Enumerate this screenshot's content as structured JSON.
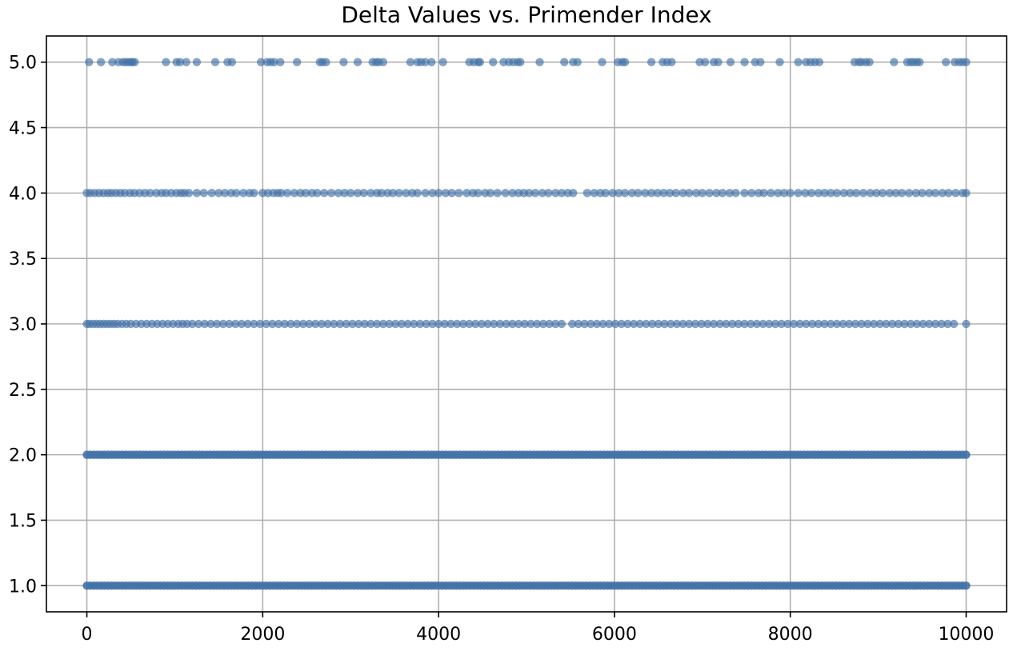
{
  "chart_data": {
    "type": "scatter",
    "title": "Delta Values vs. Primender Index",
    "xlabel": "",
    "ylabel": "",
    "xlim": [
      -460,
      10460
    ],
    "ylim": [
      0.8,
      5.2
    ],
    "x_ticks": [
      0,
      2000,
      4000,
      6000,
      8000,
      10000
    ],
    "x_tick_labels": [
      "0",
      "2000",
      "4000",
      "6000",
      "8000",
      "10000"
    ],
    "y_ticks": [
      1.0,
      1.5,
      2.0,
      2.5,
      3.0,
      3.5,
      4.0,
      4.5,
      5.0
    ],
    "y_tick_labels": [
      "1.0",
      "1.5",
      "2.0",
      "2.5",
      "3.0",
      "3.5",
      "4.0",
      "4.5",
      "5.0"
    ],
    "grid": true,
    "marker_color": "#4472a8",
    "marker_alpha": 0.65,
    "series": [
      {
        "delta": 5.0,
        "x": [
          25,
          160,
          290,
          360,
          410,
          440,
          470,
          500,
          520,
          545,
          900,
          1020,
          1060,
          1130,
          1250,
          1460,
          1600,
          1650,
          1980,
          2050,
          2090,
          2130,
          2200,
          2390,
          2650,
          2680,
          2720,
          2920,
          3080,
          3250,
          3290,
          3320,
          3370,
          3680,
          3760,
          3800,
          3850,
          3920,
          4050,
          4350,
          4400,
          4450,
          4470,
          4620,
          4740,
          4800,
          4850,
          4900,
          4930,
          5150,
          5430,
          5530,
          5580,
          5860,
          6040,
          6090,
          6120,
          6420,
          6550,
          6600,
          6650,
          6970,
          7030,
          7130,
          7180,
          7320,
          7480,
          7600,
          7660,
          7880,
          8090,
          8180,
          8230,
          8280,
          8330,
          8730,
          8780,
          8810,
          8860,
          8900,
          9180,
          9330,
          9370,
          9400,
          9440,
          9470,
          9770,
          9870,
          9920,
          9960,
          10000
        ]
      },
      {
        "delta": 4.0,
        "x": [
          0,
          40,
          90,
          140,
          190,
          240,
          280,
          330,
          380,
          430,
          490,
          540,
          600,
          660,
          720,
          790,
          850,
          900,
          960,
          1020,
          1070,
          1110,
          1160,
          1250,
          1330,
          1420,
          1500,
          1570,
          1640,
          1700,
          1780,
          1850,
          1900,
          2000,
          2060,
          2120,
          2170,
          2210,
          2280,
          2360,
          2430,
          2490,
          2560,
          2620,
          2700,
          2780,
          2860,
          2930,
          3000,
          3080,
          3150,
          3230,
          3300,
          3350,
          3420,
          3480,
          3550,
          3630,
          3700,
          3760,
          3850,
          3930,
          4000,
          4080,
          4150,
          4230,
          4320,
          4390,
          4450,
          4530,
          4590,
          4670,
          4760,
          4840,
          4910,
          4970,
          5030,
          5100,
          5180,
          5250,
          5330,
          5400,
          5470,
          5530,
          5690,
          5770,
          5840,
          5900,
          5980,
          6050,
          6120,
          6200,
          6270,
          6350,
          6420,
          6490,
          6560,
          6630,
          6700,
          6780,
          6850,
          6930,
          7000,
          7080,
          7160,
          7230,
          7310,
          7380,
          7480,
          7560,
          7640,
          7700,
          7780,
          7860,
          7930,
          8000,
          8090,
          8170,
          8240,
          8320,
          8390,
          8460,
          8530,
          8610,
          8680,
          8750,
          8830,
          8910,
          8980,
          9050,
          9130,
          9200,
          9270,
          9350,
          9430,
          9500,
          9580,
          9650,
          9730,
          9800,
          9880,
          9960,
          10000
        ]
      },
      {
        "delta": 3.0,
        "x": [
          0,
          30,
          70,
          110,
          150,
          190,
          230,
          270,
          310,
          350,
          400,
          450,
          500,
          560,
          620,
          680,
          740,
          800,
          860,
          920,
          980,
          1040,
          1090,
          1140,
          1200,
          1270,
          1340,
          1410,
          1480,
          1550,
          1620,
          1690,
          1760,
          1830,
          1900,
          1970,
          2040,
          2110,
          2180,
          2250,
          2320,
          2390,
          2460,
          2530,
          2600,
          2670,
          2740,
          2810,
          2880,
          2950,
          3020,
          3090,
          3160,
          3230,
          3300,
          3370,
          3440,
          3510,
          3580,
          3650,
          3720,
          3790,
          3860,
          3930,
          4000,
          4070,
          4140,
          4210,
          4280,
          4350,
          4420,
          4490,
          4560,
          4630,
          4700,
          4770,
          4840,
          4910,
          4980,
          5050,
          5120,
          5190,
          5260,
          5330,
          5400,
          5520,
          5590,
          5660,
          5730,
          5800,
          5870,
          5940,
          6010,
          6080,
          6150,
          6220,
          6290,
          6360,
          6430,
          6500,
          6570,
          6640,
          6710,
          6780,
          6850,
          6920,
          6990,
          7060,
          7130,
          7200,
          7270,
          7340,
          7410,
          7480,
          7550,
          7620,
          7690,
          7760,
          7830,
          7900,
          7970,
          8040,
          8110,
          8180,
          8250,
          8320,
          8390,
          8460,
          8530,
          8600,
          8670,
          8740,
          8810,
          8880,
          8950,
          9020,
          9090,
          9160,
          9230,
          9300,
          9370,
          9440,
          9510,
          9580,
          9650,
          9720,
          9790,
          9860,
          10000
        ]
      },
      {
        "delta": 2.0,
        "dense": true,
        "x_range": [
          0,
          10000
        ]
      },
      {
        "delta": 1.0,
        "dense": true,
        "x_range": [
          0,
          10000
        ]
      }
    ]
  }
}
